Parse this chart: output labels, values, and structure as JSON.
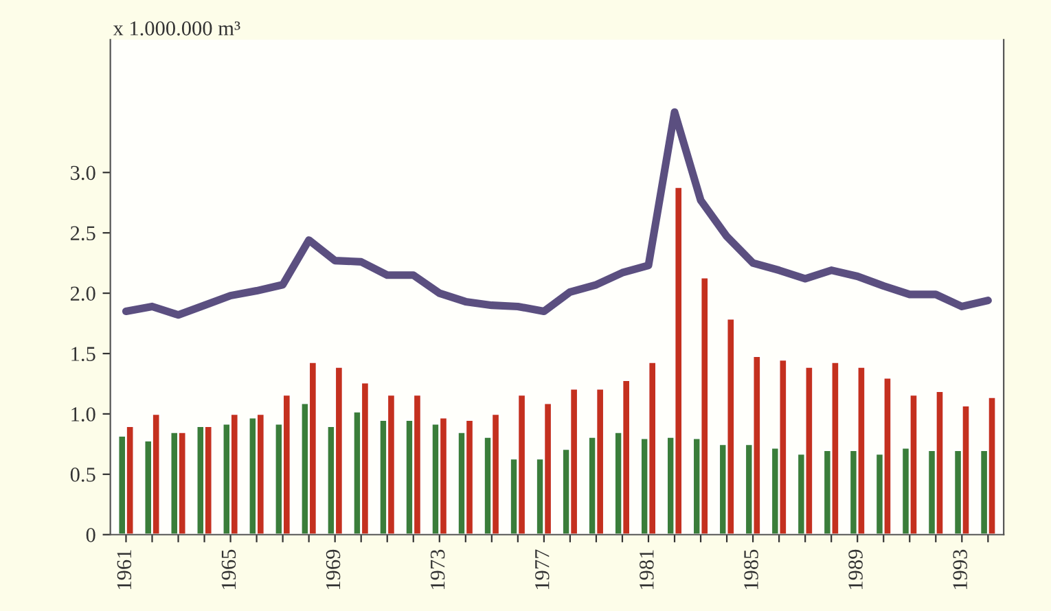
{
  "chart_data": {
    "type": "bar",
    "ylabel": "x 1.000.000 m³",
    "categories": [
      "1961",
      null,
      null,
      null,
      "1965",
      null,
      null,
      null,
      "1969",
      null,
      null,
      null,
      "1973",
      null,
      null,
      null,
      "1977",
      null,
      null,
      null,
      "1981",
      null,
      null,
      null,
      "1985",
      null,
      null,
      null,
      "1989",
      null,
      null,
      null,
      "1993",
      null
    ],
    "series": [
      {
        "color": "#3a7d3a",
        "values": [
          0.82,
          0.78,
          0.85,
          0.9,
          0.92,
          0.97,
          0.92,
          1.09,
          0.9,
          1.02,
          0.95,
          0.95,
          0.92,
          0.85,
          0.81,
          0.63,
          0.63,
          0.71,
          0.81,
          0.85,
          0.8,
          0.81,
          0.8,
          0.75,
          0.75,
          0.72,
          0.67,
          0.7,
          0.7,
          0.67,
          0.72,
          0.7,
          0.7,
          0.7
        ]
      },
      {
        "color": "#c4301f",
        "values": [
          0.9,
          1.0,
          0.85,
          0.9,
          1.0,
          1.0,
          1.16,
          1.43,
          1.39,
          1.26,
          1.16,
          1.16,
          0.97,
          0.95,
          1.0,
          1.16,
          1.09,
          1.21,
          1.21,
          1.28,
          1.43,
          2.88,
          2.13,
          1.79,
          1.48,
          1.45,
          1.39,
          1.43,
          1.39,
          1.3,
          1.16,
          1.19,
          1.07,
          1.14
        ]
      },
      {
        "type": "line",
        "color": "#5b4f80",
        "values": [
          1.85,
          1.89,
          1.82,
          1.9,
          1.98,
          2.02,
          2.07,
          2.44,
          2.27,
          2.26,
          2.15,
          2.15,
          2.0,
          1.93,
          1.9,
          1.89,
          1.85,
          2.01,
          2.07,
          2.17,
          2.23,
          3.5,
          2.77,
          2.47,
          2.25,
          2.19,
          2.12,
          2.19,
          2.14,
          2.06,
          1.99,
          1.99,
          1.89,
          1.94
        ]
      }
    ],
    "ylim": [
      0,
      4.1
    ],
    "yticks": [
      {
        "value": 0,
        "label": "0"
      },
      {
        "value": 0.5,
        "label": "0.5"
      },
      {
        "value": 1,
        "label": "1.0"
      },
      {
        "value": 1.5,
        "label": "1.5"
      },
      {
        "value": 2,
        "label": "2.0"
      },
      {
        "value": 2.5,
        "label": "2.5"
      },
      {
        "value": 3,
        "label": "3.0"
      }
    ],
    "grid": false,
    "line_style": "solid",
    "marker": "none"
  }
}
